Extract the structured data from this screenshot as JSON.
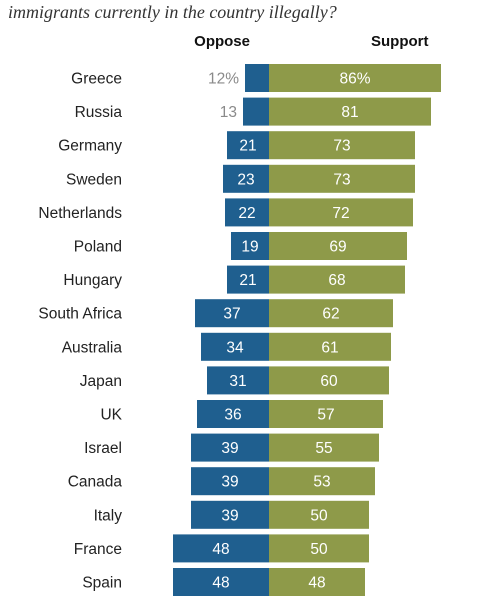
{
  "title": "immigrants currently in the country illegally?",
  "colors": {
    "oppose": "#1f5f8f",
    "support": "#8e9a49",
    "outside_label": "#8a8a8a",
    "inside_label": "#ffffff"
  },
  "chart_data": {
    "type": "bar",
    "orientation": "horizontal-diverging",
    "title": "immigrants currently in the country illegally?",
    "xlim": [
      0,
      100
    ],
    "grid": false,
    "legend": "top",
    "unit_suffix_first_row": "%",
    "categories": [
      "Greece",
      "Russia",
      "Germany",
      "Sweden",
      "Netherlands",
      "Poland",
      "Hungary",
      "South Africa",
      "Australia",
      "Japan",
      "UK",
      "Israel",
      "Canada",
      "Italy",
      "France",
      "Spain"
    ],
    "series": [
      {
        "name": "Oppose",
        "values": [
          12,
          13,
          21,
          23,
          22,
          19,
          21,
          37,
          34,
          31,
          36,
          39,
          39,
          39,
          48,
          48
        ]
      },
      {
        "name": "Support",
        "values": [
          86,
          81,
          73,
          73,
          72,
          69,
          68,
          62,
          61,
          60,
          57,
          55,
          53,
          50,
          50,
          48
        ]
      }
    ]
  }
}
